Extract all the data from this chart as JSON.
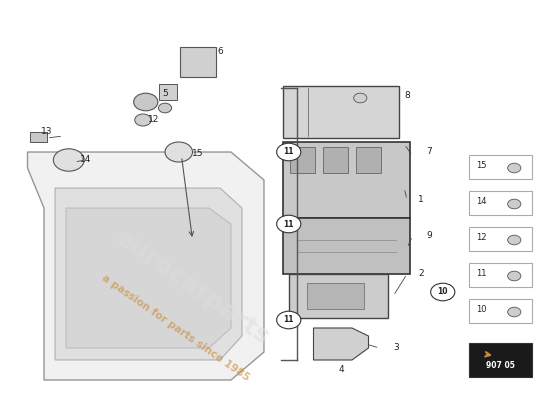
{
  "bg_color": "#ffffff",
  "watermark_text": "eurocarparts",
  "watermark_subtext": "a passion for parts since 1985",
  "page_ref": "907 05"
}
